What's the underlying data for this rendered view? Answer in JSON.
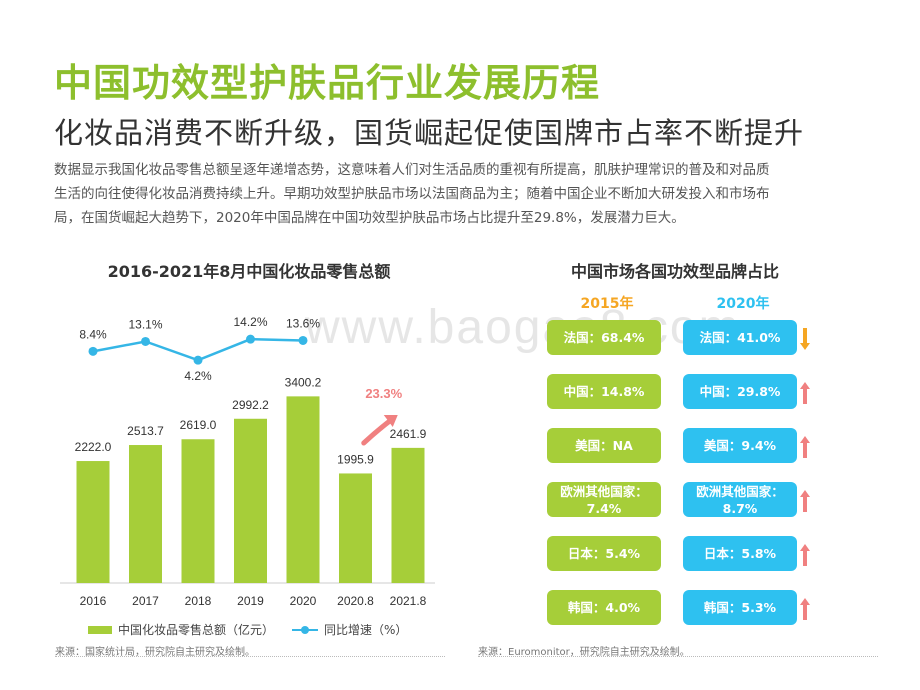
{
  "header": {
    "title": "中国功效型护肤品行业发展历程",
    "subtitle": "化妆品消费不断升级，国货崛起促使国牌市占率不断提升",
    "description_line1": "数据显示我国化妆品零售总额呈逐年递增态势，这意味着人们对生活品质的重视有所提高，肌肤护理常识的普及和对品质",
    "description_line2": "生活的向往使得化妆品消费持续上升。早期功效型护肤品市场以法国商品为主；随着中国企业不断加大研发投入和市场布",
    "description_line3": "局，在国货崛起大趋势下，2020年中国品牌在中国功效型护肤品市场占比提升至29.8%，发展潜力巨大。"
  },
  "watermark": "www.baogao8.com",
  "chart_data": [
    {
      "type": "bar",
      "title": "2016-2021年8月中国化妆品零售总额",
      "categories": [
        "2016",
        "2017",
        "2018",
        "2019",
        "2020",
        "2020.8",
        "2021.8"
      ],
      "series": [
        {
          "name": "中国化妆品零售总额（亿元）",
          "values": [
            2222.0,
            2513.7,
            2619.0,
            2992.2,
            3400.2,
            1995.9,
            2461.9
          ]
        },
        {
          "name": "同比增速（%）",
          "values": [
            8.4,
            13.1,
            4.2,
            14.2,
            13.6,
            null,
            null
          ]
        }
      ],
      "bar_labels": [
        "2222.0",
        "2513.7",
        "2619.0",
        "2992.2",
        "3400.2",
        "1995.9",
        "2461.9"
      ],
      "line_labels": [
        "8.4%",
        "13.1%",
        "4.2%",
        "14.2%",
        "13.6%"
      ],
      "annotation": "23.3%",
      "ylim": [
        0,
        3600
      ],
      "colors": {
        "bar": "#a6ce39",
        "line": "#35b6e6",
        "annotation": "#f08080"
      }
    },
    {
      "type": "table",
      "title": "中国市场各国功效型品牌占比",
      "columns": [
        "2015年",
        "2020年"
      ],
      "rows": [
        {
          "c2015": "法国：68.4%",
          "c2020": "法国：41.0%",
          "trend": "down"
        },
        {
          "c2015": "中国：14.8%",
          "c2020": "中国：29.8%",
          "trend": "up"
        },
        {
          "c2015": "美国：NA",
          "c2020": "美国：9.4%",
          "trend": "up"
        },
        {
          "c2015": "欧洲其他国家：7.4%",
          "c2020": "欧洲其他国家：8.7%",
          "trend": "up"
        },
        {
          "c2015": "日本：5.4%",
          "c2020": "日本：5.8%",
          "trend": "up"
        },
        {
          "c2015": "韩国：4.0%",
          "c2020": "韩国：5.3%",
          "trend": "up"
        }
      ],
      "colors": {
        "c2015": "#a6ce39",
        "c2020": "#2ec1f0",
        "head2015": "#f5a623",
        "head2020": "#2ec1f0",
        "up": "#f08080",
        "down": "#f5a623"
      }
    }
  ],
  "legend": {
    "bar_label": "中国化妆品零售总额（亿元）",
    "line_label": "同比增速（%）"
  },
  "sources": {
    "left": "来源：国家统计局，研究院自主研究及绘制。",
    "right": "来源：Euromonitor，研究院自主研究及绘制。"
  }
}
